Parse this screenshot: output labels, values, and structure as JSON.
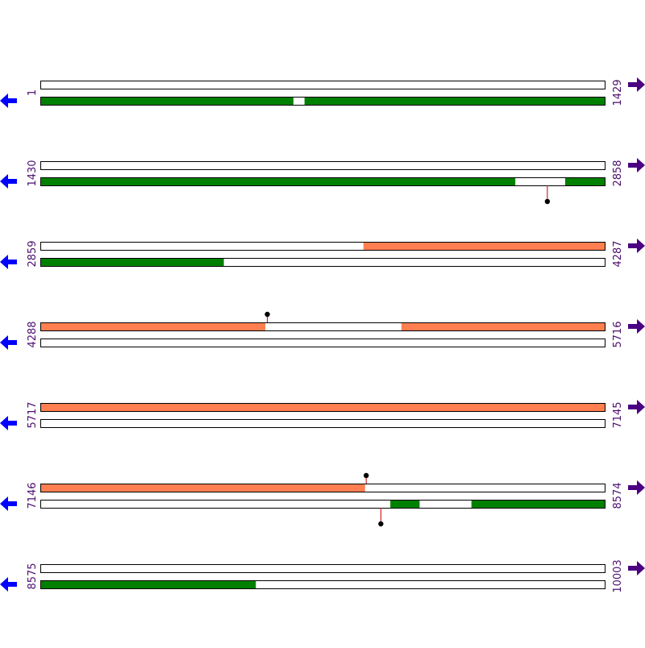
{
  "colors": {
    "forward": "#ff7f50",
    "reverse": "#008000",
    "left_arrow": "#0000ff",
    "right_arrow": "#4b0082",
    "marker_stem": "#c00000",
    "marker_head": "#000000",
    "line": "#000000",
    "label": "#4b0f6e"
  },
  "icons": {
    "left": "left-arrow-icon",
    "right": "right-arrow-icon"
  },
  "rows": [
    {
      "start": "1",
      "end": "1429",
      "tracks": [
        {
          "strand": "forward",
          "features": []
        },
        {
          "strand": "reverse",
          "features": [
            {
              "from": 1,
              "to": 640
            },
            {
              "from": 669,
              "to": 1429
            }
          ]
        }
      ],
      "markers": []
    },
    {
      "start": "1430",
      "end": "2858",
      "tracks": [
        {
          "strand": "forward",
          "features": []
        },
        {
          "strand": "reverse",
          "features": [
            {
              "from": 1430,
              "to": 2630
            },
            {
              "from": 2757,
              "to": 2858
            }
          ]
        }
      ],
      "markers": [
        {
          "pos": 2712,
          "track": 1,
          "dir": "down"
        }
      ]
    },
    {
      "start": "2859",
      "end": "4287",
      "tracks": [
        {
          "strand": "forward",
          "features": [
            {
              "from": 3676,
              "to": 4287
            }
          ]
        },
        {
          "strand": "reverse",
          "features": [
            {
              "from": 2859,
              "to": 3322
            }
          ]
        }
      ],
      "markers": []
    },
    {
      "start": "4288",
      "end": "5716",
      "tracks": [
        {
          "strand": "forward",
          "features": [
            {
              "from": 4288,
              "to": 4856
            },
            {
              "from": 5201,
              "to": 5716
            }
          ]
        },
        {
          "strand": "reverse",
          "features": []
        }
      ],
      "markers": [
        {
          "pos": 4862,
          "track": 0,
          "dir": "up"
        }
      ]
    },
    {
      "start": "5717",
      "end": "7145",
      "tracks": [
        {
          "strand": "forward",
          "features": [
            {
              "from": 5717,
              "to": 7145
            }
          ]
        },
        {
          "strand": "reverse",
          "features": []
        }
      ],
      "markers": []
    },
    {
      "start": "7146",
      "end": "8574",
      "tracks": [
        {
          "strand": "forward",
          "features": [
            {
              "from": 7146,
              "to": 7966
            }
          ]
        },
        {
          "strand": "reverse",
          "features": [
            {
              "from": 8031,
              "to": 8104
            },
            {
              "from": 8236,
              "to": 8574
            }
          ]
        }
      ],
      "markers": [
        {
          "pos": 7970,
          "track": 0,
          "dir": "up"
        },
        {
          "pos": 8007,
          "track": 1,
          "dir": "down"
        }
      ]
    },
    {
      "start": "8575",
      "end": "10003",
      "tracks": [
        {
          "strand": "forward",
          "features": []
        },
        {
          "strand": "reverse",
          "features": [
            {
              "from": 8575,
              "to": 9119
            }
          ]
        }
      ],
      "markers": []
    }
  ]
}
